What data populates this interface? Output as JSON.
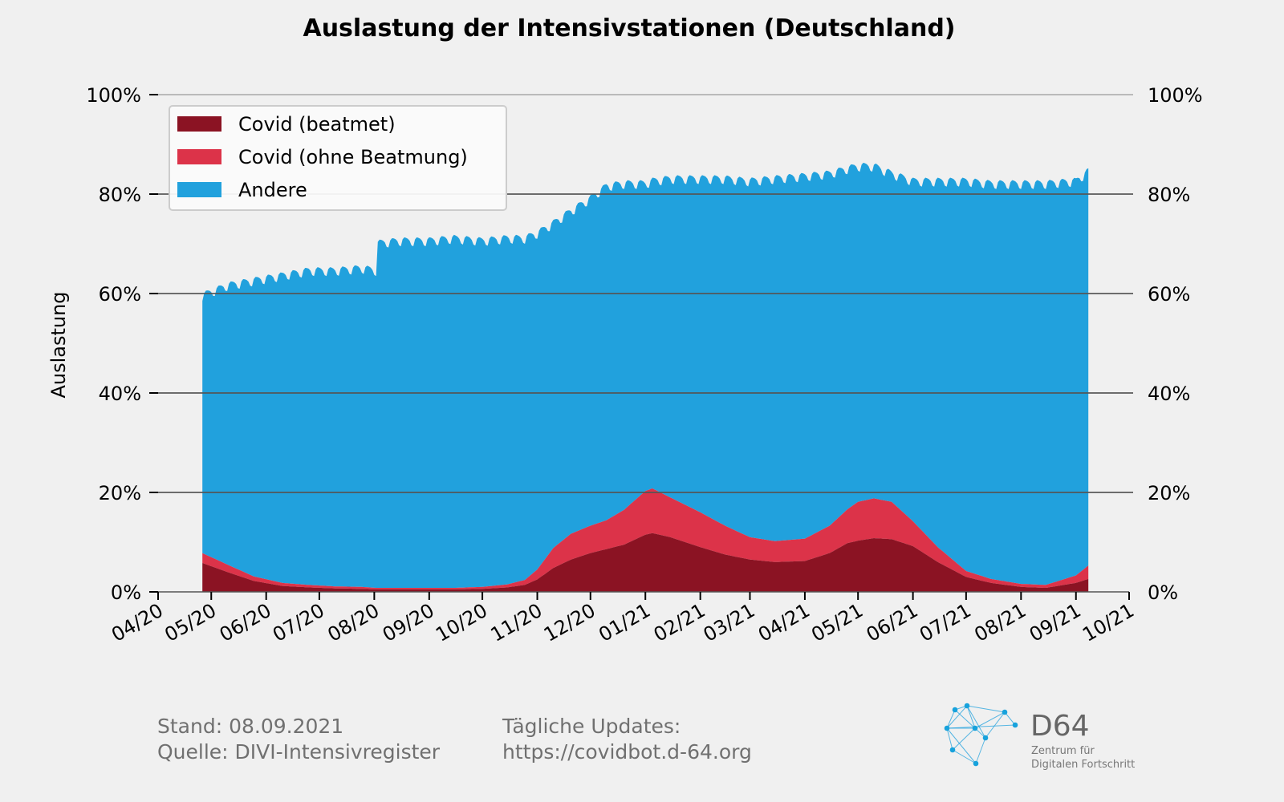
{
  "chart_data": {
    "type": "area",
    "stacked": true,
    "title": "Auslastung der Intensivstationen (Deutschland)",
    "xlabel": "",
    "ylabel": "Auslastung",
    "ylim": [
      0,
      100
    ],
    "y_ticks": [
      "0%",
      "20%",
      "40%",
      "60%",
      "80%",
      "100%"
    ],
    "y_tick_values": [
      0,
      20,
      40,
      60,
      80,
      100
    ],
    "y_right_ticks": [
      "0%",
      "20%",
      "40%",
      "60%",
      "80%",
      "100%"
    ],
    "x_ticks": [
      "04/20",
      "05/20",
      "06/20",
      "07/20",
      "08/20",
      "09/20",
      "10/20",
      "11/20",
      "12/20",
      "01/21",
      "02/21",
      "03/21",
      "04/21",
      "05/21",
      "06/21",
      "07/21",
      "08/21",
      "09/21",
      "10/21"
    ],
    "x_tick_dates": [
      "2020-04-01",
      "2020-05-01",
      "2020-06-01",
      "2020-07-01",
      "2020-08-01",
      "2020-09-01",
      "2020-10-01",
      "2020-11-01",
      "2020-12-01",
      "2021-01-01",
      "2021-02-01",
      "2021-03-01",
      "2021-04-01",
      "2021-05-01",
      "2021-06-01",
      "2021-07-01",
      "2021-08-01",
      "2021-09-01",
      "2021-10-01"
    ],
    "xlim": [
      "2020-04-01",
      "2021-10-01"
    ],
    "grid": "horizontal",
    "legend_position": "top-left",
    "series": [
      {
        "name": "Covid (beatmet)",
        "color": "#8b1323"
      },
      {
        "name": "Covid (ohne Beatmung)",
        "color": "#dc3349"
      },
      {
        "name": "Andere",
        "color": "#21a1dd"
      }
    ],
    "dates": [
      "2020-04-26",
      "2020-05-10",
      "2020-05-25",
      "2020-06-10",
      "2020-06-25",
      "2020-07-10",
      "2020-07-25",
      "2020-08-02",
      "2020-08-03",
      "2020-08-15",
      "2020-09-01",
      "2020-09-15",
      "2020-10-01",
      "2020-10-15",
      "2020-10-25",
      "2020-11-01",
      "2020-11-10",
      "2020-11-20",
      "2020-12-01",
      "2020-12-10",
      "2020-12-20",
      "2021-01-01",
      "2021-01-05",
      "2021-01-15",
      "2021-02-01",
      "2021-02-15",
      "2021-03-01",
      "2021-03-15",
      "2021-04-01",
      "2021-04-15",
      "2021-04-25",
      "2021-05-01",
      "2021-05-10",
      "2021-05-20",
      "2021-06-01",
      "2021-06-15",
      "2021-07-01",
      "2021-07-15",
      "2021-08-01",
      "2021-08-15",
      "2021-09-01",
      "2021-09-08"
    ],
    "beatmet_pct": [
      5.8,
      4.0,
      2.2,
      1.2,
      0.9,
      0.7,
      0.6,
      0.5,
      0.5,
      0.5,
      0.5,
      0.5,
      0.6,
      0.9,
      1.4,
      2.5,
      4.8,
      6.5,
      7.8,
      8.6,
      9.5,
      11.5,
      11.8,
      11.0,
      9.0,
      7.5,
      6.5,
      6.0,
      6.2,
      7.8,
      9.8,
      10.3,
      10.8,
      10.6,
      9.2,
      6.0,
      3.0,
      1.8,
      1.0,
      0.8,
      1.8,
      2.6
    ],
    "ohne_beatmung_pct": [
      2.0,
      1.5,
      0.9,
      0.6,
      0.5,
      0.4,
      0.4,
      0.3,
      0.3,
      0.3,
      0.3,
      0.3,
      0.4,
      0.6,
      1.0,
      2.0,
      4.0,
      5.2,
      5.5,
      5.8,
      7.0,
      8.8,
      9.0,
      8.0,
      7.0,
      5.8,
      4.5,
      4.2,
      4.5,
      5.5,
      6.8,
      7.8,
      8.0,
      7.5,
      5.0,
      3.0,
      1.2,
      0.8,
      0.6,
      0.6,
      1.5,
      2.7
    ],
    "total_pct": [
      59.5,
      61.5,
      62.5,
      63.5,
      64.5,
      64.5,
      65.0,
      64.5,
      70.0,
      70.5,
      70.5,
      71.0,
      70.5,
      71.0,
      71.0,
      72.0,
      74.0,
      76.5,
      79.0,
      81.5,
      82.0,
      82.0,
      82.5,
      83.0,
      83.0,
      83.0,
      82.5,
      83.0,
      83.5,
      84.0,
      85.0,
      85.5,
      85.5,
      84.0,
      82.5,
      82.5,
      82.5,
      82.0,
      82.0,
      82.0,
      82.5,
      84.5
    ],
    "weekly_dip_pct": 2.0
  },
  "footer": {
    "stand": "Stand: 08.09.2021",
    "quelle": "Quelle: DIVI-Intensivregister",
    "updates_label": "Tägliche Updates:",
    "updates_url": "https://covidbot.d-64.org"
  },
  "logo": {
    "name": "D64",
    "line1": "Zentrum für",
    "line2": "Digitalen Fortschritt"
  }
}
